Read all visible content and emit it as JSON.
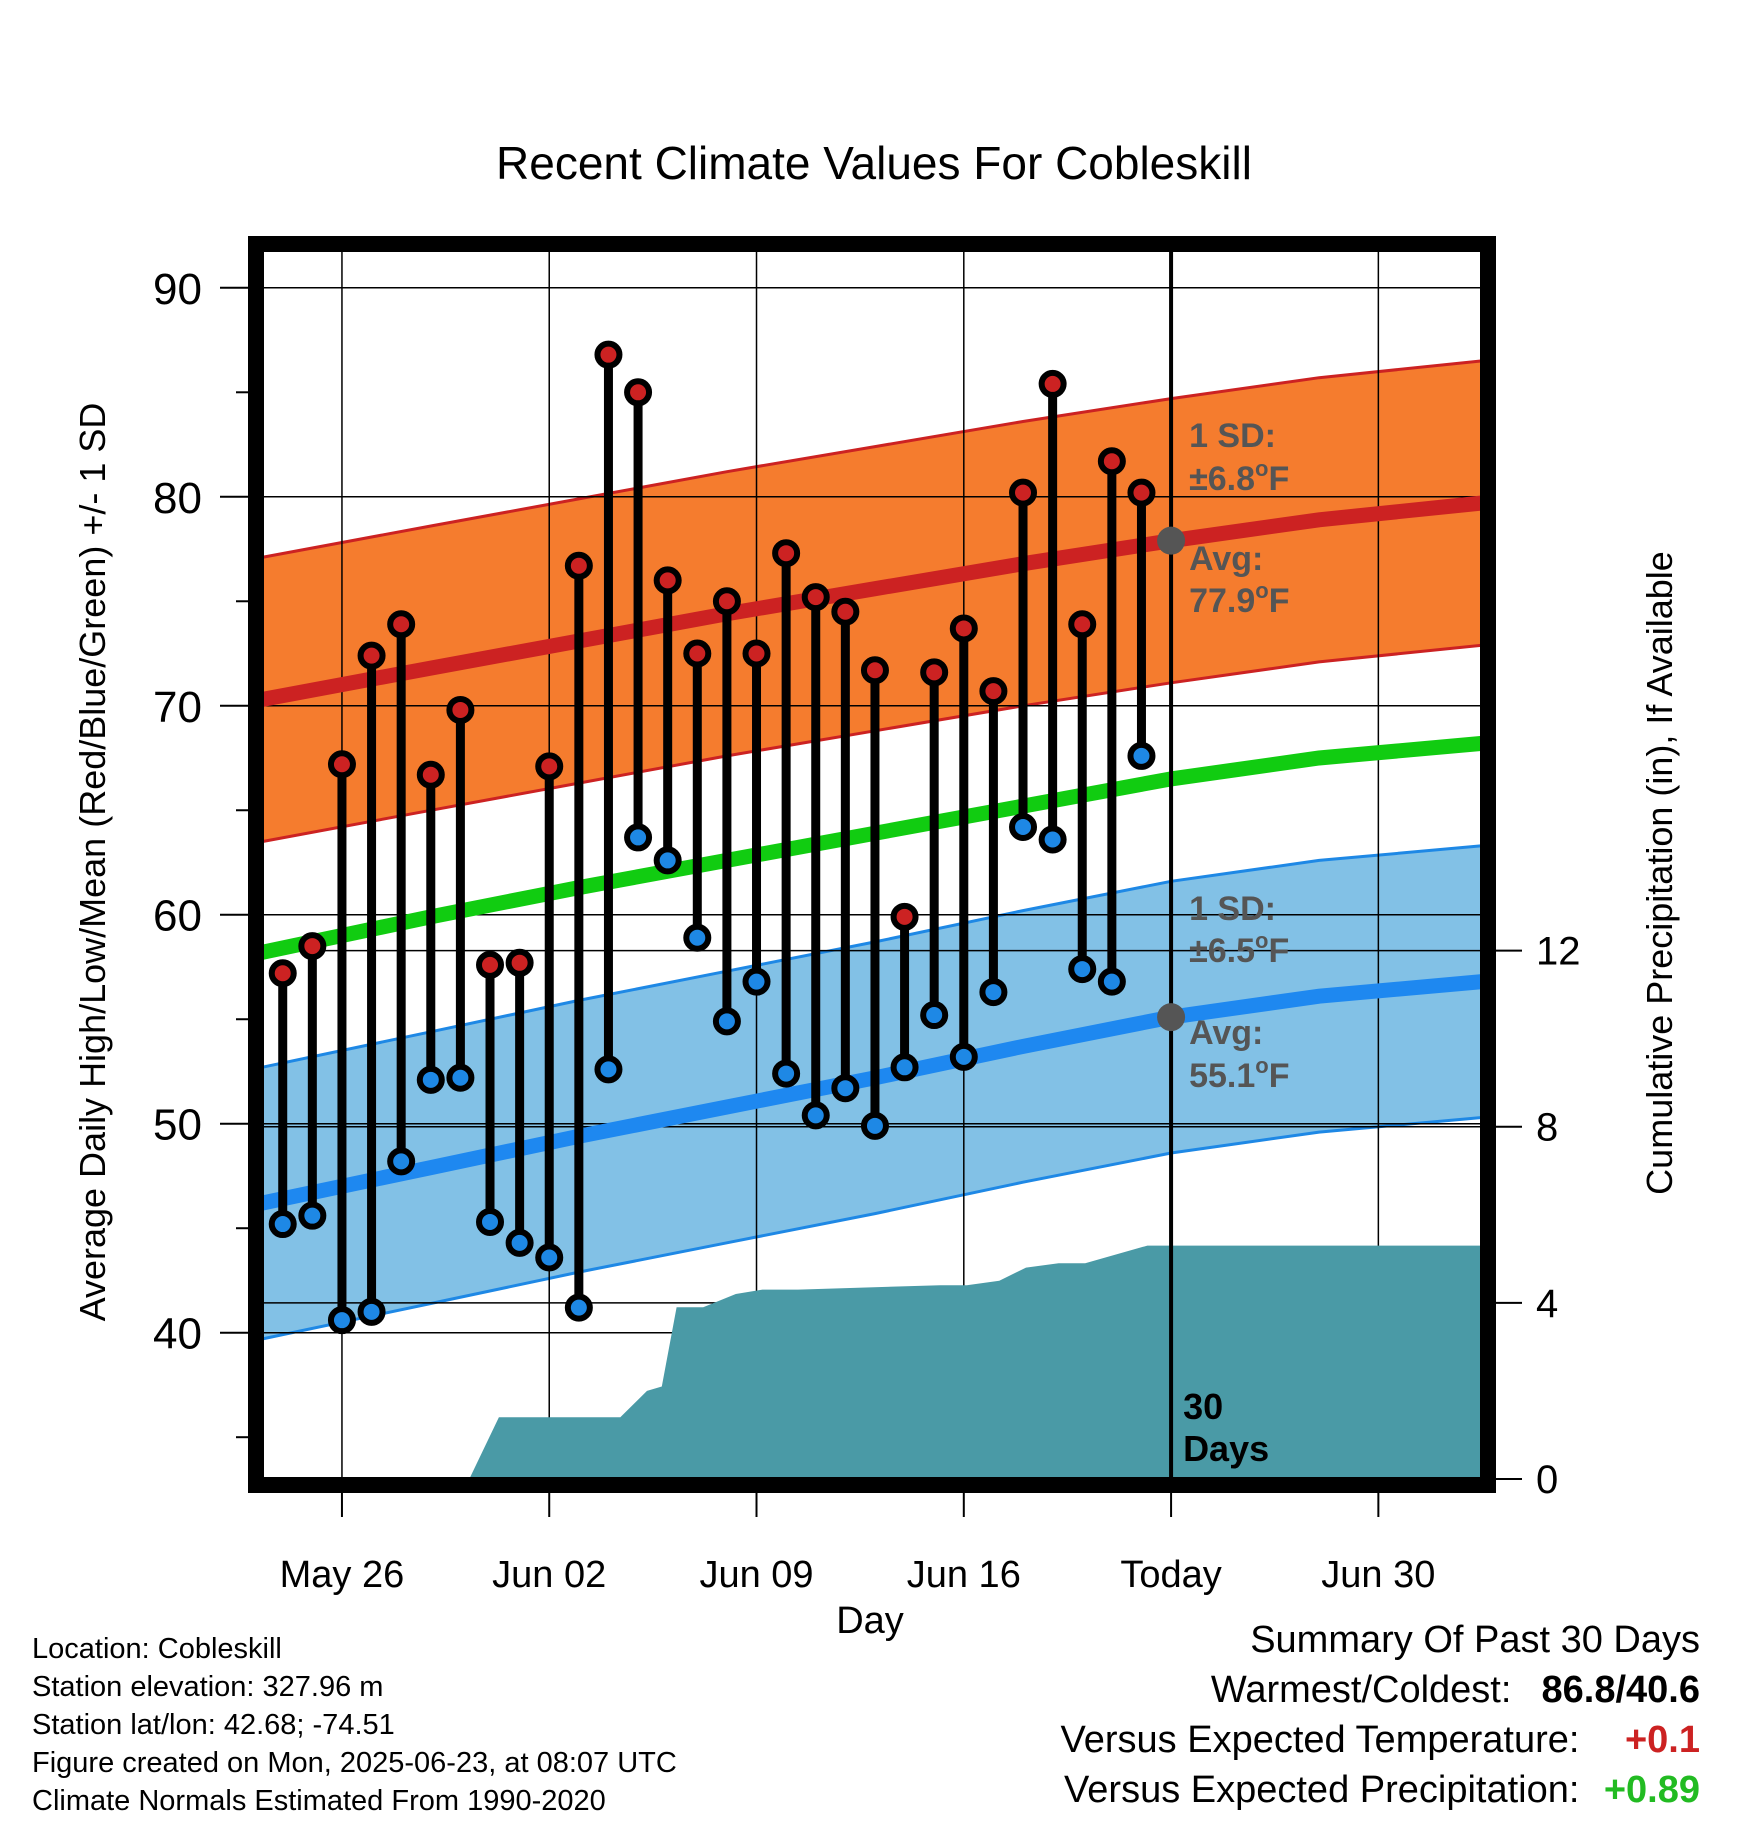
{
  "title": "Recent Climate Values For Cobleskill",
  "colors": {
    "high_point": "#cc2222",
    "low_point": "#1e88e5",
    "high_band": "#f57c2e",
    "low_band": "#82c1e6",
    "mean_line": "#11cc11",
    "high_avg_line": "#cc2222",
    "low_avg_line": "#1e88f0",
    "precip_fill": "#4a9aa6",
    "annotation_text": "#555555",
    "positive_temp": "#cc2222",
    "positive_precip": "#22bb22"
  },
  "chart_data": {
    "type": "line",
    "title": "Recent Climate Values For Cobleskill",
    "xlabel": "Day",
    "ylabel": "Average Daily High/Low/Mean (Red/Blue/Green) +/- 1 SD",
    "y2label": "Cumulative Precipitation (in), If Available",
    "x_ticks": [
      "May 26",
      "Jun 02",
      "Jun 09",
      "Jun 16",
      "Today",
      "Jun 30"
    ],
    "x_tick_days": [
      2,
      9,
      16,
      23,
      30,
      37
    ],
    "xlim": [
      -0.7,
      40.5
    ],
    "ylim": [
      33,
      92
    ],
    "yticks": [
      40,
      50,
      60,
      70,
      80,
      90
    ],
    "y2lim": [
      0,
      28
    ],
    "y2ticks": [
      0,
      4,
      8,
      12
    ],
    "today_day": 30,
    "today_label_lines": [
      "30",
      "Days"
    ],
    "days": [
      0,
      1,
      2,
      3,
      4,
      5,
      6,
      7,
      8,
      9,
      10,
      11,
      12,
      13,
      14,
      15,
      16,
      17,
      18,
      19,
      20,
      21,
      22,
      23,
      24,
      25,
      26,
      27,
      28,
      29
    ],
    "high": [
      57.2,
      58.5,
      67.2,
      72.4,
      73.9,
      66.7,
      69.8,
      57.6,
      57.7,
      67.1,
      76.7,
      86.8,
      85.0,
      76.0,
      72.5,
      75.0,
      72.5,
      77.3,
      75.2,
      74.5,
      71.7,
      59.9,
      71.6,
      73.7,
      70.7,
      80.2,
      85.4,
      73.9,
      81.7,
      80.2
    ],
    "low": [
      45.2,
      45.6,
      40.6,
      41.0,
      48.2,
      52.1,
      52.2,
      45.3,
      44.3,
      43.6,
      41.2,
      52.6,
      63.7,
      62.6,
      58.9,
      54.9,
      56.8,
      52.4,
      50.4,
      51.7,
      49.9,
      52.7,
      55.2,
      53.2,
      56.3,
      64.2,
      63.6,
      57.4,
      56.8,
      67.6
    ],
    "normals_days": [
      -0.7,
      5,
      10,
      15,
      20,
      25,
      30,
      35,
      40.5
    ],
    "normal_high": [
      70.3,
      71.8,
      73.1,
      74.4,
      75.6,
      76.8,
      77.9,
      78.9,
      79.7
    ],
    "high_sd": 6.8,
    "normal_low": [
      46.2,
      47.9,
      49.4,
      50.8,
      52.2,
      53.7,
      55.1,
      56.1,
      56.8
    ],
    "low_sd": 6.5,
    "normal_mean": [
      58.2,
      59.9,
      61.3,
      62.6,
      63.9,
      65.2,
      66.5,
      67.5,
      68.2
    ],
    "precip_days": [
      6.3,
      7.3,
      11.4,
      12.3,
      12.8,
      13.3,
      14.2,
      15.3,
      16.2,
      17.4,
      22.2,
      23.1,
      24.2,
      25.1,
      26.2,
      27.1,
      29.2,
      40.5
    ],
    "precip": [
      0.0,
      1.4,
      1.4,
      2.0,
      2.1,
      3.9,
      3.9,
      4.2,
      4.3,
      4.3,
      4.4,
      4.4,
      4.5,
      4.8,
      4.9,
      4.9,
      5.3,
      5.3
    ],
    "annotations": {
      "high_sd_label": "1 SD:",
      "high_sd_value": "±6.8",
      "high_avg_label": "Avg:",
      "high_avg_value": "77.9",
      "low_sd_label": "1 SD:",
      "low_sd_value": "±6.5",
      "low_avg_label": "Avg:",
      "low_avg_value": "55.1",
      "degree_unit": "o",
      "temp_unit": "F"
    }
  },
  "metadata_lines": [
    "Location: Cobleskill",
    "Station elevation: 327.96 m",
    "Station lat/lon: 42.68; -74.51",
    "Figure created on Mon, 2025-06-23, at 08:07 UTC",
    "Climate Normals Estimated From 1990-2020"
  ],
  "summary": {
    "heading": "Summary Of Past 30 Days",
    "warm_cold_label": "Warmest/Coldest:",
    "warm_cold_value": "86.8/40.6",
    "temp_label": "Versus Expected Temperature:",
    "temp_value": "+0.1",
    "precip_label": "Versus Expected Precipitation:",
    "precip_value": "+0.89"
  }
}
